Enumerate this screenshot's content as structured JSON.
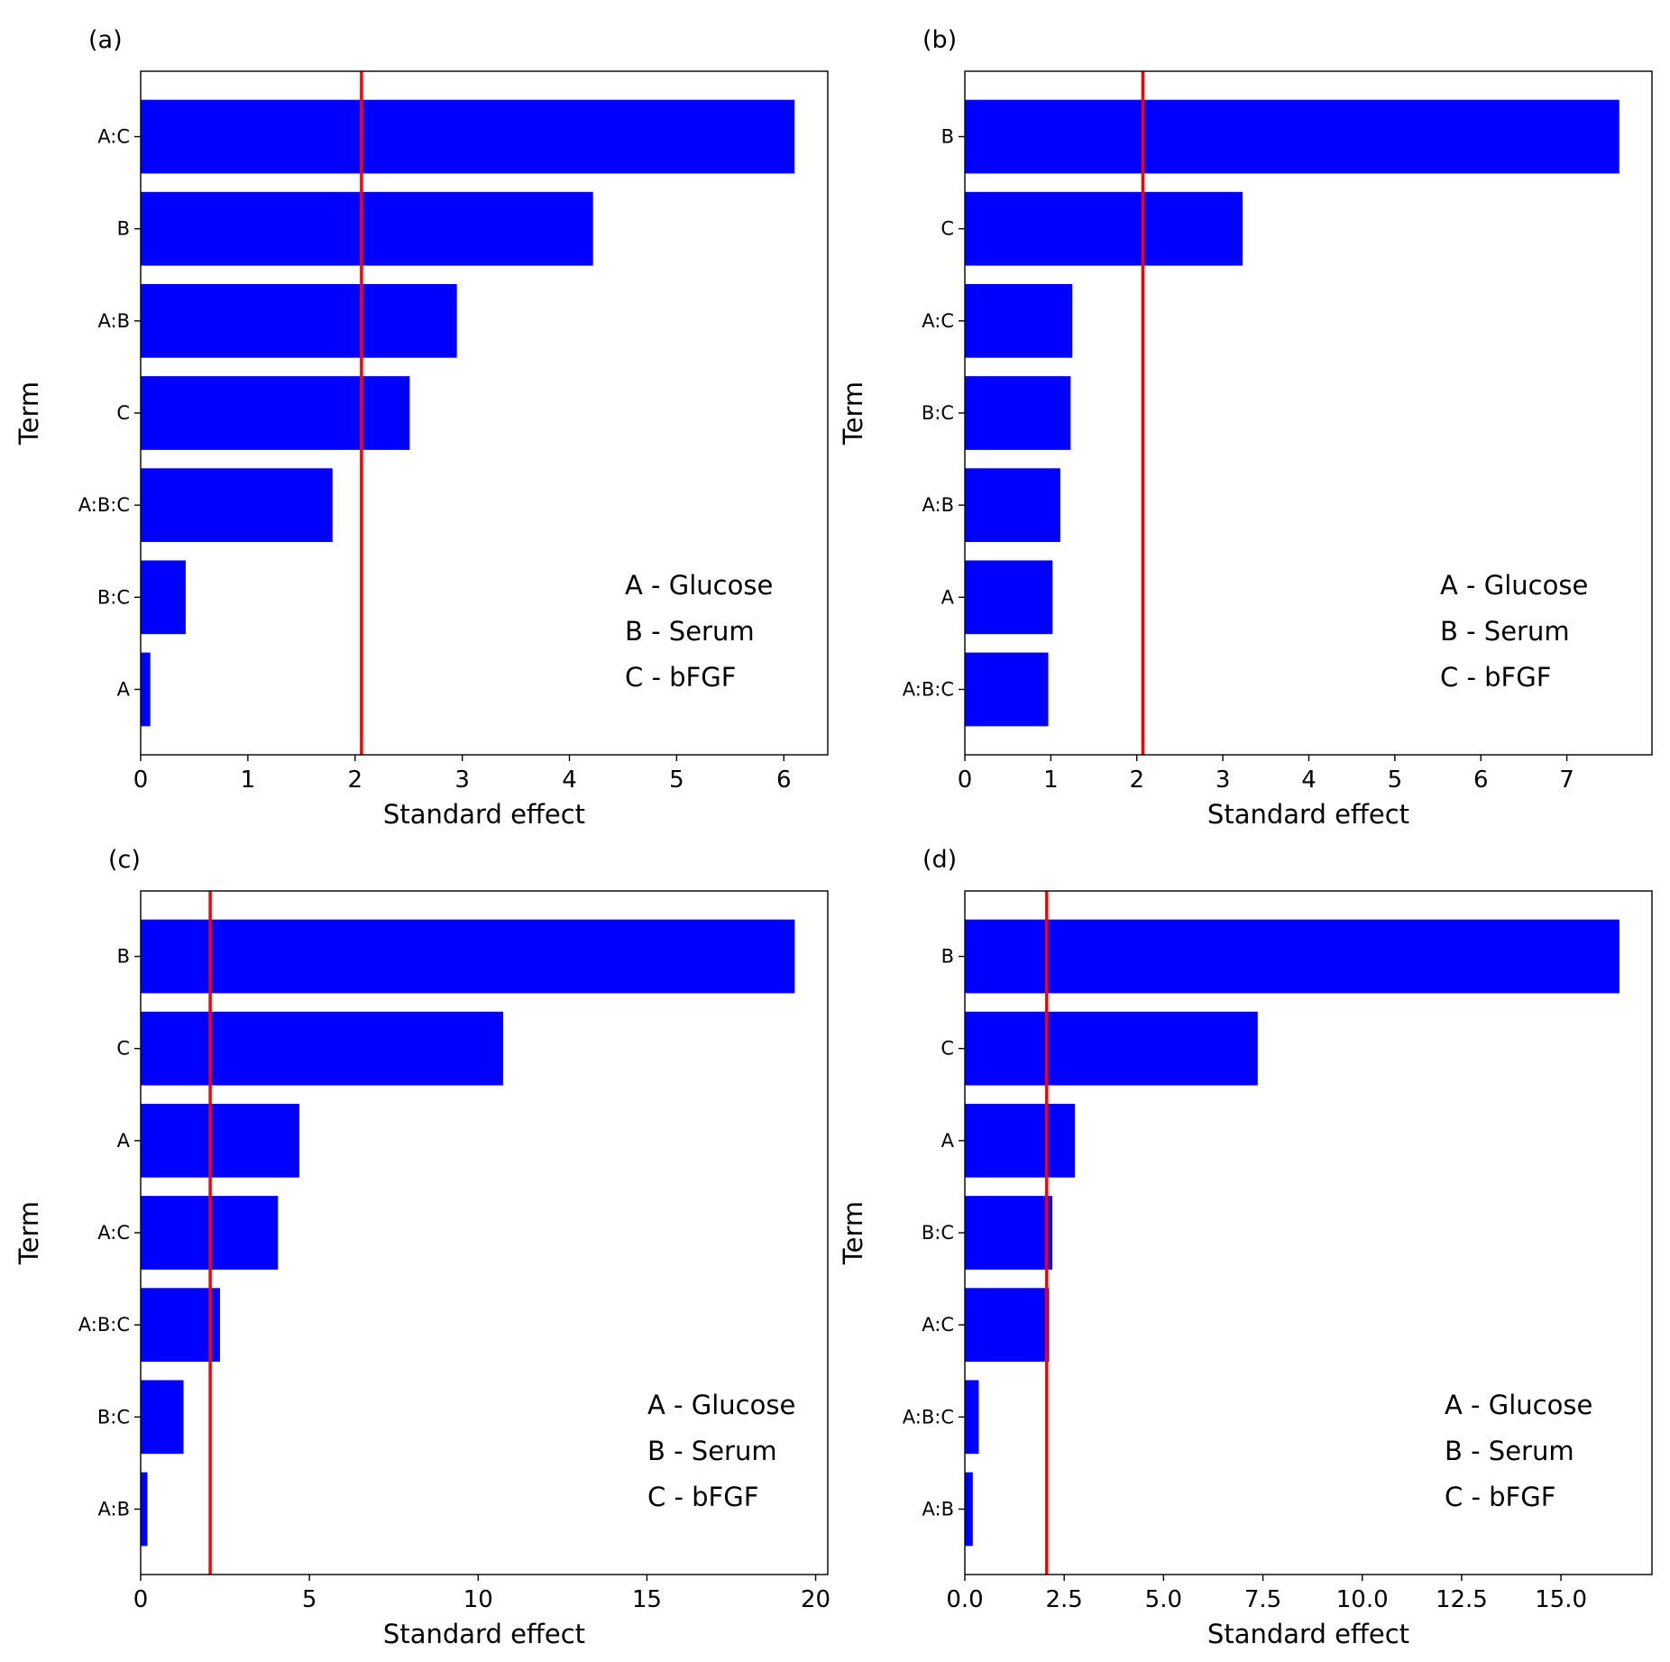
{
  "chart_data": [
    {
      "type": "bar",
      "orientation": "horizontal",
      "panel_label": "(a)",
      "categories": [
        "A:C",
        "B",
        "A:B",
        "C",
        "A:B:C",
        "B:C",
        "A"
      ],
      "values": [
        6.1,
        4.22,
        2.95,
        2.51,
        1.79,
        0.42,
        0.09
      ],
      "xlabel": "Standard effect",
      "ylabel": "Term",
      "xlim": [
        0,
        6.41
      ],
      "xticks": [
        "0",
        "1",
        "2",
        "3",
        "4",
        "5",
        "6"
      ],
      "xtick_values": [
        0,
        1,
        2,
        3,
        4,
        5,
        6
      ],
      "reference_line": 2.06,
      "bar_color": "#0000ff",
      "line_color": "#ff0000",
      "legend": [
        "A - Glucose",
        "B - Serum",
        "C - bFGF"
      ]
    },
    {
      "type": "bar",
      "orientation": "horizontal",
      "panel_label": "(b)",
      "categories": [
        "B",
        "C",
        "A:C",
        "B:C",
        "A:B",
        "A",
        "A:B:C"
      ],
      "values": [
        7.61,
        3.23,
        1.25,
        1.23,
        1.11,
        1.02,
        0.97
      ],
      "xlabel": "Standard effect",
      "ylabel": "Term",
      "xlim": [
        0,
        7.99
      ],
      "xticks": [
        "0",
        "1",
        "2",
        "3",
        "4",
        "5",
        "6",
        "7"
      ],
      "xtick_values": [
        0,
        1,
        2,
        3,
        4,
        5,
        6,
        7
      ],
      "reference_line": 2.07,
      "bar_color": "#0000ff",
      "line_color": "#ff0000",
      "legend": [
        "A - Glucose",
        "B - Serum",
        "C - bFGF"
      ]
    },
    {
      "type": "bar",
      "orientation": "horizontal",
      "panel_label": "(c)",
      "categories": [
        "B",
        "C",
        "A",
        "A:C",
        "A:B:C",
        "B:C",
        "A:B"
      ],
      "values": [
        19.38,
        10.74,
        4.7,
        4.07,
        2.35,
        1.27,
        0.2
      ],
      "xlabel": "Standard effect",
      "ylabel": "Term",
      "xlim": [
        0,
        20.36
      ],
      "xticks": [
        "0",
        "5",
        "10",
        "15",
        "20"
      ],
      "xtick_values": [
        0,
        5,
        10,
        15,
        20
      ],
      "reference_line": 2.06,
      "bar_color": "#0000ff",
      "line_color": "#ff0000",
      "legend": [
        "A - Glucose",
        "B - Serum",
        "C - bFGF"
      ]
    },
    {
      "type": "bar",
      "orientation": "horizontal",
      "panel_label": "(d)",
      "categories": [
        "B",
        "C",
        "A",
        "B:C",
        "A:C",
        "A:B:C",
        "A:B"
      ],
      "values": [
        16.47,
        7.37,
        2.77,
        2.2,
        2.12,
        0.35,
        0.2
      ],
      "xlabel": "Standard effect",
      "ylabel": "Term",
      "xlim": [
        0,
        17.29
      ],
      "xticks": [
        "0.0",
        "2.5",
        "5.0",
        "7.5",
        "10.0",
        "12.5",
        "15.0"
      ],
      "xtick_values": [
        0,
        2.5,
        5,
        7.5,
        10,
        12.5,
        15
      ],
      "reference_line": 2.06,
      "bar_color": "#0000ff",
      "line_color": "#ff0000",
      "legend": [
        "A - Glucose",
        "B - Serum",
        "C - bFGF"
      ]
    }
  ]
}
